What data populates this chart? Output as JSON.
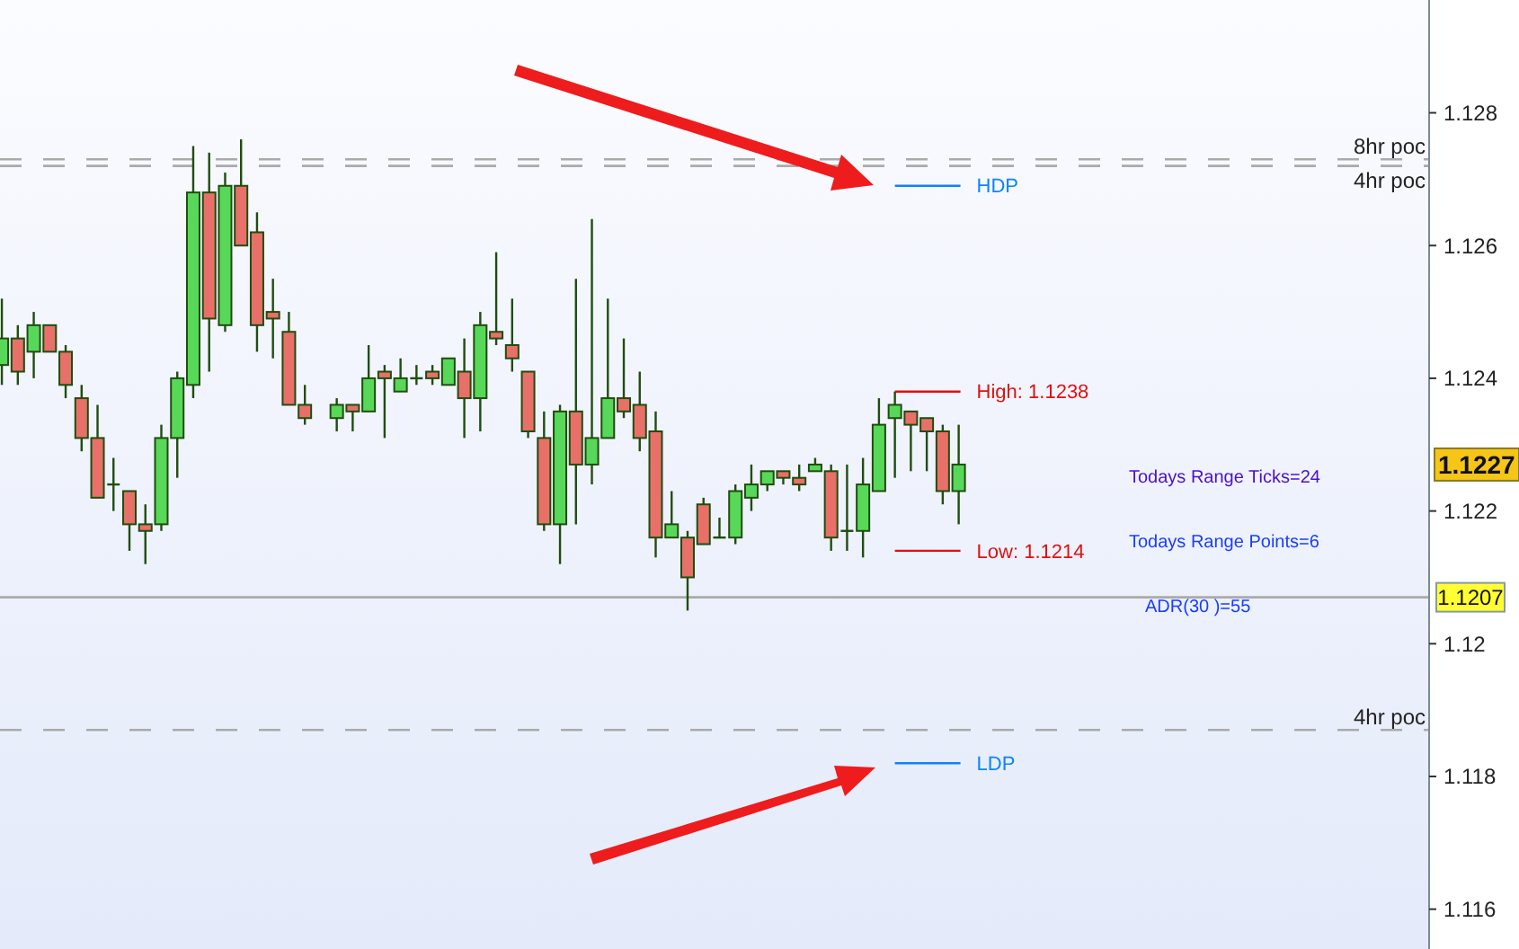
{
  "chart_data": {
    "type": "candlestick",
    "categories": [
      null,
      null,
      null,
      null,
      null,
      null,
      null,
      null,
      null,
      null,
      null,
      null,
      null,
      null,
      null,
      null,
      null,
      null,
      null,
      null,
      null,
      null,
      null,
      null,
      null,
      null,
      null,
      null,
      null,
      null,
      null,
      null,
      null,
      null,
      null,
      null,
      null,
      null,
      null,
      null,
      null,
      null,
      null,
      null,
      null,
      null,
      null,
      null,
      null,
      null,
      null,
      null,
      null,
      null,
      null,
      null,
      null,
      null,
      null,
      null,
      null,
      null,
      null,
      null,
      null,
      null,
      null,
      null,
      null,
      null,
      null,
      null,
      null,
      null,
      null,
      null,
      null,
      null,
      null,
      null,
      null,
      null,
      null,
      null,
      null,
      null,
      null,
      null,
      null,
      null
    ],
    "ohlc": [
      [
        1.1242,
        1.1252,
        1.1239,
        1.1246
      ],
      [
        1.1246,
        1.1248,
        1.1239,
        1.1241
      ],
      [
        1.1244,
        1.125,
        1.124,
        1.1248
      ],
      [
        1.1248,
        1.1248,
        1.1244,
        1.1244
      ],
      [
        1.1244,
        1.1245,
        1.1237,
        1.1239
      ],
      [
        1.1237,
        1.1239,
        1.1229,
        1.1231
      ],
      [
        1.1231,
        1.1236,
        1.1222,
        1.1222
      ],
      [
        1.1224,
        1.1228,
        1.122,
        1.1224
      ],
      [
        1.1223,
        1.1223,
        1.1214,
        1.1218
      ],
      [
        1.1218,
        1.1221,
        1.1212,
        1.1217
      ],
      [
        1.1218,
        1.1233,
        1.1217,
        1.1231
      ],
      [
        1.1231,
        1.1241,
        1.1225,
        1.124
      ],
      [
        1.1239,
        1.1275,
        1.1237,
        1.1268
      ],
      [
        1.1268,
        1.1274,
        1.1241,
        1.1249
      ],
      [
        1.1248,
        1.1271,
        1.1247,
        1.1269
      ],
      [
        1.1269,
        1.1276,
        1.126,
        1.126
      ],
      [
        1.1262,
        1.1265,
        1.1244,
        1.1248
      ],
      [
        1.125,
        1.1255,
        1.1243,
        1.1249
      ],
      [
        1.1247,
        1.125,
        1.1236,
        1.1236
      ],
      [
        1.1236,
        1.1239,
        1.1233,
        1.1234
      ],
      null,
      [
        1.1234,
        1.1237,
        1.1232,
        1.1236
      ],
      [
        1.1236,
        1.1236,
        1.1232,
        1.1235
      ],
      [
        1.1235,
        1.1245,
        1.1235,
        1.124
      ],
      [
        1.1241,
        1.1242,
        1.1231,
        1.124
      ],
      [
        1.1238,
        1.1243,
        1.1238,
        1.124
      ],
      [
        1.124,
        1.1242,
        1.1239,
        1.124
      ],
      [
        1.1241,
        1.1242,
        1.1239,
        1.124
      ],
      [
        1.1239,
        1.1243,
        1.1239,
        1.1243
      ],
      [
        1.1241,
        1.1246,
        1.1231,
        1.1237
      ],
      [
        1.1237,
        1.125,
        1.1232,
        1.1248
      ],
      [
        1.1247,
        1.1259,
        1.1245,
        1.1246
      ],
      [
        1.1245,
        1.1252,
        1.1241,
        1.1243
      ],
      [
        1.1241,
        1.1241,
        1.1231,
        1.1232
      ],
      [
        1.1231,
        1.1235,
        1.1217,
        1.1218
      ],
      [
        1.1218,
        1.1236,
        1.1212,
        1.1235
      ],
      [
        1.1235,
        1.1255,
        1.1218,
        1.1227
      ],
      [
        1.1227,
        1.1264,
        1.1224,
        1.1231
      ],
      [
        1.1231,
        1.1252,
        1.1231,
        1.1237
      ],
      [
        1.1237,
        1.1246,
        1.1234,
        1.1235
      ],
      [
        1.1236,
        1.1241,
        1.1229,
        1.1231
      ],
      [
        1.1232,
        1.1235,
        1.1213,
        1.1216
      ],
      [
        1.1216,
        1.1223,
        1.1216,
        1.1218
      ],
      [
        1.1216,
        1.1217,
        1.1205,
        1.121
      ],
      [
        1.1221,
        1.1222,
        1.1215,
        1.1215
      ],
      [
        1.1216,
        1.1219,
        1.1216,
        1.1216
      ],
      [
        1.1216,
        1.1224,
        1.1215,
        1.1223
      ],
      [
        1.1222,
        1.1227,
        1.122,
        1.1224
      ],
      [
        1.1224,
        1.1226,
        1.1223,
        1.1226
      ],
      [
        1.1226,
        1.1226,
        1.1224,
        1.1225
      ],
      [
        1.1225,
        1.1227,
        1.1223,
        1.1224
      ],
      [
        1.1226,
        1.1228,
        1.1226,
        1.1227
      ],
      [
        1.1226,
        1.1227,
        1.1214,
        1.1216
      ],
      [
        1.1217,
        1.1227,
        1.1214,
        1.1217
      ],
      [
        1.1217,
        1.1228,
        1.1213,
        1.1224
      ],
      [
        1.1223,
        1.1237,
        1.1223,
        1.1233
      ],
      [
        1.1234,
        1.1238,
        1.1225,
        1.1236
      ],
      [
        1.1235,
        1.1235,
        1.1226,
        1.1233
      ],
      [
        1.1234,
        1.1234,
        1.1226,
        1.1232
      ],
      [
        1.1232,
        1.1233,
        1.1221,
        1.1223
      ],
      [
        1.1223,
        1.1233,
        1.1218,
        1.1227
      ],
      null,
      null,
      null,
      null,
      null,
      null,
      null,
      null,
      null,
      null,
      null,
      null,
      null,
      null,
      null,
      null,
      null,
      null,
      null,
      null,
      null,
      null,
      null,
      null,
      null,
      null,
      null,
      null,
      null
    ],
    "ylim": [
      1.1154,
      1.1297
    ],
    "yticks": [
      1.116,
      1.118,
      1.12,
      1.122,
      1.124,
      1.126,
      1.128
    ],
    "ref_lines": [
      {
        "axis": "y",
        "value": 1.1273,
        "label": "8hr poc",
        "line_style": "dashed"
      },
      {
        "axis": "y",
        "value": 1.1272,
        "label": "4hr poc",
        "line_style": "dashed"
      },
      {
        "axis": "y",
        "value": 1.1187,
        "label": "4hr poc",
        "line_style": "dashed"
      },
      {
        "axis": "y",
        "value": 1.1207,
        "label": "1.1207"
      },
      {
        "axis": "y",
        "value": 1.1269,
        "label": "HDP",
        "color": "#0a84ff"
      },
      {
        "axis": "y",
        "value": 1.1182,
        "label": "LDP",
        "color": "#0a84ff"
      },
      {
        "axis": "y",
        "value": 1.1238,
        "label": "High: 1.1238",
        "color": "#e01010"
      },
      {
        "axis": "y",
        "value": 1.1214,
        "label": "Low: 1.1214",
        "color": "#e01010"
      }
    ],
    "annotations": [
      "Todays Range Ticks=24",
      "Todays Range Points=6",
      "ADR(30 )=55",
      "1.1227"
    ],
    "grid": false
  }
}
